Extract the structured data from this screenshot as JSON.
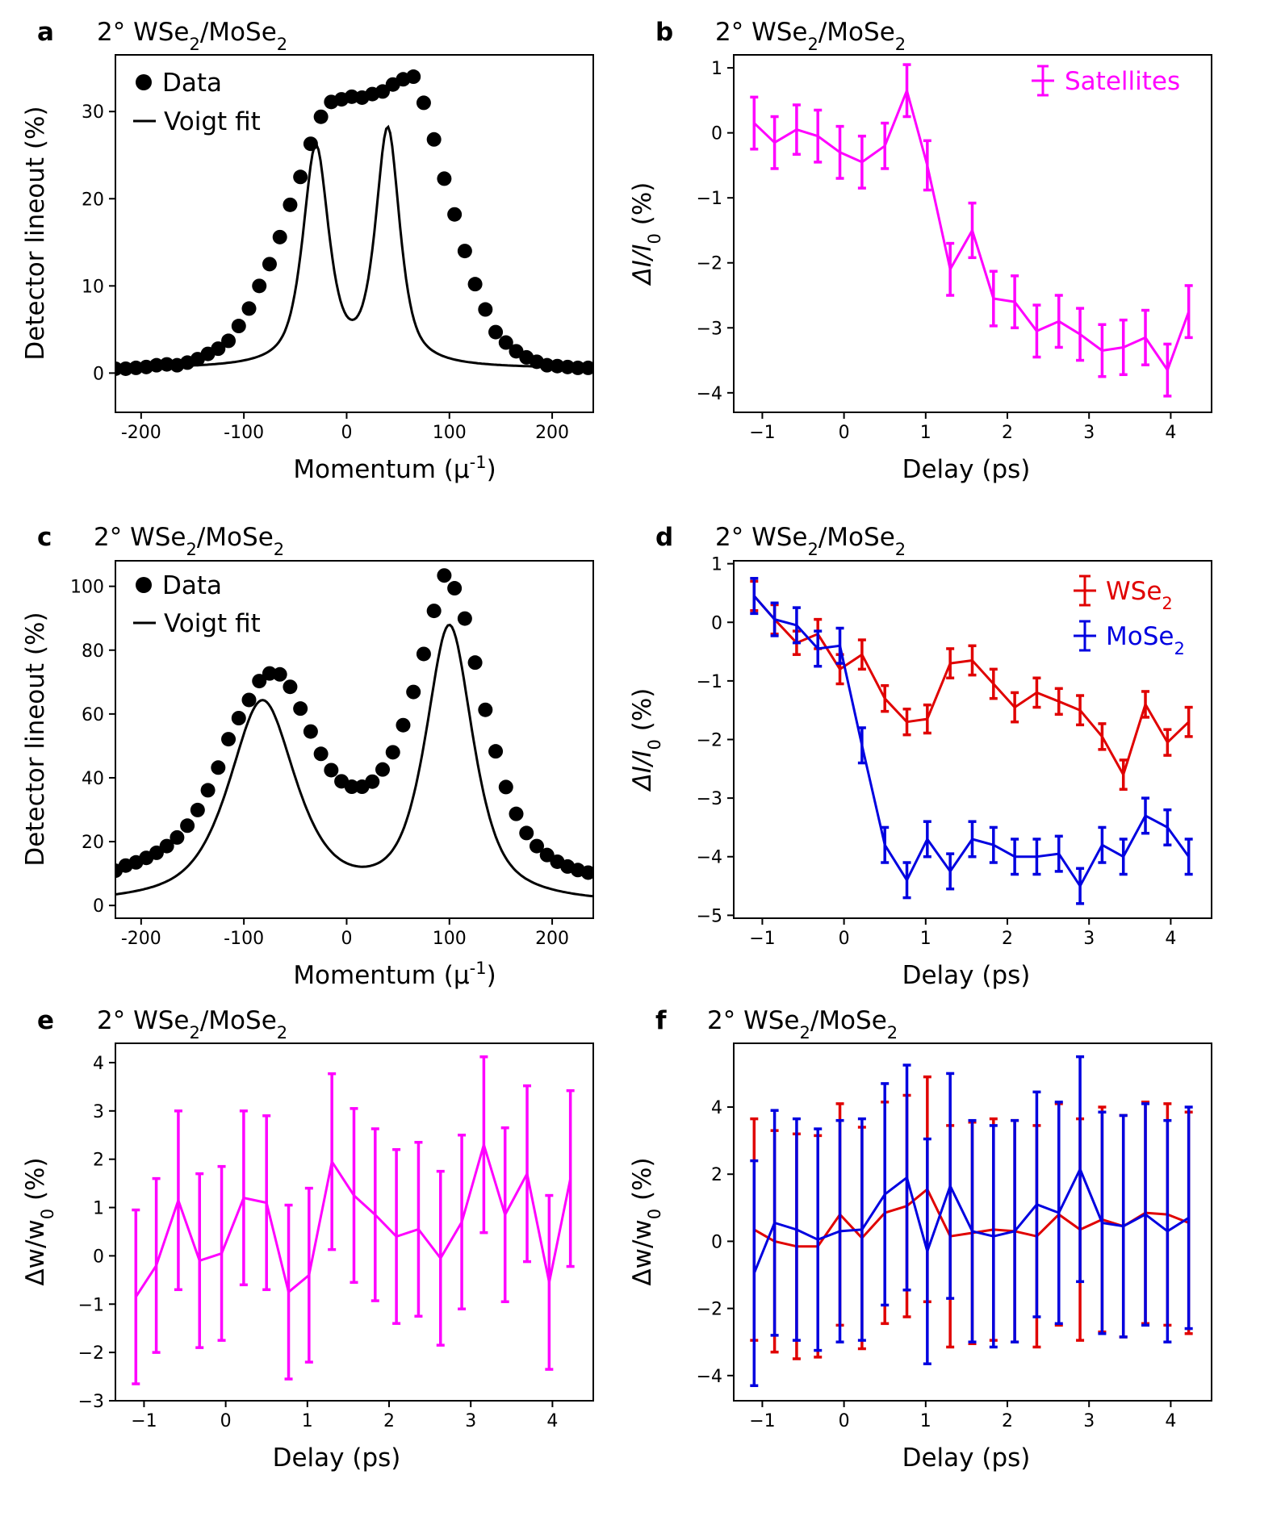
{
  "figure": {
    "panels": [
      {
        "letter": "a",
        "title_main": "2° WSe",
        "title_sub1": "2",
        "title_mid": "/MoSe",
        "title_sub2": "2"
      },
      {
        "letter": "b",
        "title_main": "2° WSe",
        "title_sub1": "2",
        "title_mid": "/MoSe",
        "title_sub2": "2"
      },
      {
        "letter": "c",
        "title_main": "2° WSe",
        "title_sub1": "2",
        "title_mid": "/MoSe",
        "title_sub2": "2"
      },
      {
        "letter": "d",
        "title_main": "2° WSe",
        "title_sub1": "2",
        "title_mid": "/MoSe",
        "title_sub2": "2"
      },
      {
        "letter": "e",
        "title_main": "2° WSe",
        "title_sub1": "2",
        "title_mid": "/MoSe",
        "title_sub2": "2"
      },
      {
        "letter": "f",
        "title_main": "2° WSe",
        "title_sub1": "2",
        "title_mid": "/MoSe",
        "title_sub2": "2"
      }
    ],
    "labels": {
      "detector": "Detector lineout (%)",
      "momentum_main": "Momentum (μ",
      "momentum_sup": "-1",
      "momentum_close": ")",
      "delay": "Delay (ps)",
      "dI_main": "ΔI/I",
      "dI_sub": "0",
      "dI_rest": " (%)",
      "dw_main": "Δw/w",
      "dw_sub": "0",
      "dw_rest": " (%)"
    },
    "legends": {
      "data": "Data",
      "voigt": "Voigt fit",
      "satellites": "Satellites",
      "wse2_main": "WSe",
      "wse2_sub": "2",
      "mose2_main": "MoSe",
      "mose2_sub": "2"
    }
  },
  "chart_data": [
    {
      "id": "a",
      "type": "scatter",
      "title": "2° WSe2/MoSe2",
      "xlabel": "Momentum (μ-1)",
      "ylabel": "Detector lineout (%)",
      "xlim": [
        -225,
        240
      ],
      "ylim": [
        -4.5,
        36.5
      ],
      "xticks": [
        -200,
        -100,
        0,
        100,
        200
      ],
      "yticks": [
        0,
        10,
        20,
        30
      ],
      "xtick_labels": [
        "-200",
        "-100",
        "0",
        "100",
        "200"
      ],
      "ytick_labels": [
        "0",
        "10",
        "20",
        "30"
      ],
      "fit_model": "voigt-double",
      "fit_params": {
        "c": 0.5,
        "peaks": [
          [
            -30,
            25,
            30
          ],
          [
            40,
            27,
            28
          ]
        ]
      },
      "marker_color": "#000000",
      "x": [
        -225,
        -215,
        -205,
        -195,
        -185,
        -175,
        -165,
        -155,
        -145,
        -135,
        -125,
        -115,
        -105,
        -95,
        -85,
        -75,
        -65,
        -55,
        -45,
        -35,
        -25,
        -15,
        -5,
        5,
        15,
        25,
        35,
        45,
        55,
        65,
        75,
        85,
        95,
        105,
        115,
        125,
        135,
        145,
        155,
        165,
        175,
        185,
        195,
        205,
        215,
        225,
        235
      ],
      "y": [
        0.5,
        0.5,
        0.6,
        0.7,
        0.9,
        1.0,
        0.9,
        1.2,
        1.6,
        2.2,
        2.8,
        3.7,
        5.4,
        7.4,
        10.0,
        12.5,
        15.6,
        19.3,
        22.5,
        26.3,
        29.4,
        31.1,
        31.4,
        31.7,
        31.6,
        32.0,
        32.3,
        33.1,
        33.7,
        34.0,
        31.0,
        26.8,
        22.3,
        18.2,
        14.0,
        10.2,
        7.3,
        4.7,
        3.5,
        2.5,
        1.8,
        1.3,
        0.9,
        0.8,
        0.7,
        0.6,
        0.6
      ]
    },
    {
      "id": "b",
      "type": "line",
      "title": "2° WSe2/MoSe2",
      "xlabel": "Delay (ps)",
      "ylabel": "ΔI/I0 (%)",
      "xlim": [
        -1.35,
        4.5
      ],
      "ylim": [
        -4.3,
        1.2
      ],
      "xticks": [
        -1,
        0,
        1,
        2,
        3,
        4
      ],
      "yticks": [
        1,
        0,
        -1,
        -2,
        -3,
        -4
      ],
      "xtick_labels": [
        "−1",
        "0",
        "1",
        "2",
        "3",
        "4"
      ],
      "ytick_labels": [
        "1",
        "0",
        "−1",
        "−2",
        "−3",
        "−4"
      ],
      "series": [
        {
          "name": "Satellites",
          "color": "#ff00ff",
          "x": [
            -1.1,
            -0.85,
            -0.58,
            -0.32,
            -0.05,
            0.22,
            0.5,
            0.77,
            1.02,
            1.3,
            1.57,
            1.83,
            2.09,
            2.36,
            2.63,
            2.89,
            3.16,
            3.42,
            3.69,
            3.96,
            4.22
          ],
          "y": [
            0.15,
            -0.15,
            0.05,
            -0.05,
            -0.3,
            -0.45,
            -0.2,
            0.65,
            -0.5,
            -2.1,
            -1.5,
            -2.55,
            -2.6,
            -3.05,
            -2.9,
            -3.1,
            -3.35,
            -3.3,
            -3.15,
            -3.65,
            -2.75
          ],
          "err": [
            0.4,
            0.4,
            0.38,
            0.4,
            0.4,
            0.4,
            0.35,
            0.4,
            0.38,
            0.4,
            0.42,
            0.42,
            0.4,
            0.4,
            0.4,
            0.4,
            0.4,
            0.42,
            0.42,
            0.4,
            0.4
          ]
        }
      ]
    },
    {
      "id": "c",
      "type": "scatter",
      "title": "2° WSe2/MoSe2",
      "xlabel": "Momentum (μ-1)",
      "ylabel": "Detector lineout (%)",
      "xlim": [
        -225,
        240
      ],
      "ylim": [
        -4,
        108
      ],
      "xticks": [
        -200,
        -100,
        0,
        100,
        200
      ],
      "yticks": [
        0,
        20,
        40,
        60,
        80,
        100
      ],
      "xtick_labels": [
        "-200",
        "-100",
        "0",
        "100",
        "200"
      ],
      "ytick_labels": [
        "0",
        "20",
        "40",
        "60",
        "80",
        "100"
      ],
      "fit_model": "voigt-double",
      "fit_params": {
        "c": 0,
        "peaks": [
          [
            -82,
            63,
            78
          ],
          [
            100,
            86,
            55
          ]
        ]
      },
      "marker_color": "#000000",
      "x": [
        -225,
        -215,
        -205,
        -195,
        -185,
        -175,
        -165,
        -155,
        -145,
        -135,
        -125,
        -115,
        -105,
        -95,
        -85,
        -75,
        -65,
        -55,
        -45,
        -35,
        -25,
        -15,
        -5,
        5,
        15,
        25,
        35,
        45,
        55,
        65,
        75,
        85,
        95,
        105,
        115,
        125,
        135,
        145,
        155,
        165,
        175,
        185,
        195,
        205,
        215,
        225,
        235
      ],
      "y": [
        10.9,
        12.5,
        13.5,
        14.9,
        16.5,
        18.6,
        21.3,
        25.0,
        29.9,
        36.1,
        43.2,
        52.1,
        58.7,
        64.4,
        70.3,
        72.7,
        72.4,
        68.5,
        61.7,
        54.5,
        47.5,
        42.4,
        38.9,
        37.2,
        37.2,
        38.8,
        42.6,
        48.0,
        56.5,
        66.9,
        78.8,
        92.3,
        103.4,
        99.4,
        89.9,
        76.1,
        61.3,
        48.3,
        37.1,
        28.7,
        22.7,
        18.6,
        15.8,
        13.7,
        12.2,
        11.1,
        10.3
      ]
    },
    {
      "id": "d",
      "type": "line",
      "title": "2° WSe2/MoSe2",
      "xlabel": "Delay (ps)",
      "ylabel": "ΔI/I0 (%)",
      "xlim": [
        -1.35,
        4.5
      ],
      "ylim": [
        -5.05,
        1.05
      ],
      "xticks": [
        -1,
        0,
        1,
        2,
        3,
        4
      ],
      "yticks": [
        1,
        0,
        -1,
        -2,
        -3,
        -4,
        -5
      ],
      "xtick_labels": [
        "−1",
        "0",
        "1",
        "2",
        "3",
        "4"
      ],
      "ytick_labels": [
        "1",
        "0",
        "−1",
        "−2",
        "−3",
        "−4",
        "−5"
      ],
      "series": [
        {
          "name": "WSe2",
          "color": "#e00000",
          "x": [
            -1.1,
            -0.85,
            -0.58,
            -0.32,
            -0.05,
            0.22,
            0.5,
            0.77,
            1.02,
            1.3,
            1.57,
            1.83,
            2.09,
            2.36,
            2.63,
            2.89,
            3.16,
            3.42,
            3.69,
            3.96,
            4.22
          ],
          "y": [
            0.45,
            0.05,
            -0.35,
            -0.2,
            -0.8,
            -0.55,
            -1.3,
            -1.7,
            -1.65,
            -0.7,
            -0.65,
            -1.05,
            -1.45,
            -1.2,
            -1.35,
            -1.5,
            -1.95,
            -2.6,
            -1.4,
            -2.05,
            -1.7
          ],
          "err": [
            0.25,
            0.25,
            0.2,
            0.25,
            0.25,
            0.25,
            0.22,
            0.22,
            0.24,
            0.25,
            0.25,
            0.25,
            0.25,
            0.25,
            0.22,
            0.25,
            0.22,
            0.25,
            0.22,
            0.22,
            0.25
          ]
        },
        {
          "name": "MoSe2",
          "color": "#0000e0",
          "x": [
            -1.1,
            -0.85,
            -0.58,
            -0.32,
            -0.05,
            0.22,
            0.5,
            0.77,
            1.02,
            1.3,
            1.57,
            1.83,
            2.09,
            2.36,
            2.63,
            2.89,
            3.16,
            3.42,
            3.69,
            3.96,
            4.22
          ],
          "y": [
            0.45,
            0.05,
            -0.05,
            -0.45,
            -0.4,
            -2.1,
            -3.8,
            -4.4,
            -3.7,
            -4.25,
            -3.7,
            -3.8,
            -4.0,
            -4.0,
            -3.95,
            -4.5,
            -3.8,
            -4.0,
            -3.3,
            -3.5,
            -4.0
          ],
          "err": [
            0.3,
            0.28,
            0.3,
            0.3,
            0.3,
            0.3,
            0.3,
            0.3,
            0.3,
            0.3,
            0.3,
            0.3,
            0.3,
            0.3,
            0.3,
            0.3,
            0.3,
            0.3,
            0.3,
            0.3,
            0.3
          ]
        }
      ],
      "legend": "top-right"
    },
    {
      "id": "e",
      "type": "line",
      "title": "2° WSe2/MoSe2",
      "xlabel": "Delay (ps)",
      "ylabel": "Δw/w0 (%)",
      "xlim": [
        -1.35,
        4.5
      ],
      "ylim": [
        -3.0,
        4.4
      ],
      "xticks": [
        -1,
        0,
        1,
        2,
        3,
        4
      ],
      "yticks": [
        4,
        3,
        2,
        1,
        0,
        -1,
        -2,
        -3
      ],
      "xtick_labels": [
        "−1",
        "0",
        "1",
        "2",
        "3",
        "4"
      ],
      "ytick_labels": [
        "4",
        "3",
        "2",
        "1",
        "0",
        "−1",
        "−2",
        "−3"
      ],
      "series": [
        {
          "name": "Satellites",
          "color": "#ff00ff",
          "x": [
            -1.1,
            -0.85,
            -0.58,
            -0.32,
            -0.05,
            0.22,
            0.5,
            0.77,
            1.02,
            1.3,
            1.57,
            1.83,
            2.09,
            2.36,
            2.63,
            2.89,
            3.16,
            3.42,
            3.69,
            3.96,
            4.22
          ],
          "y": [
            -0.85,
            -0.2,
            1.15,
            -0.1,
            0.05,
            1.2,
            1.1,
            -0.75,
            -0.4,
            1.95,
            1.25,
            0.85,
            0.4,
            0.55,
            -0.05,
            0.7,
            2.3,
            0.85,
            1.7,
            -0.55,
            1.6
          ],
          "err": [
            1.8,
            1.8,
            1.85,
            1.8,
            1.8,
            1.8,
            1.8,
            1.8,
            1.8,
            1.82,
            1.8,
            1.78,
            1.8,
            1.8,
            1.8,
            1.8,
            1.82,
            1.8,
            1.82,
            1.8,
            1.82
          ]
        }
      ]
    },
    {
      "id": "f",
      "type": "line",
      "title": "2° WSe2/MoSe2",
      "xlabel": "Delay (ps)",
      "ylabel": "Δw/w0 (%)",
      "xlim": [
        -1.35,
        4.5
      ],
      "ylim": [
        -4.75,
        5.9
      ],
      "xticks": [
        -1,
        0,
        1,
        2,
        3,
        4
      ],
      "yticks": [
        4,
        2,
        0,
        -2,
        -4
      ],
      "xtick_labels": [
        "−1",
        "0",
        "1",
        "2",
        "3",
        "4"
      ],
      "ytick_labels": [
        "4",
        "2",
        "0",
        "−2",
        "−4"
      ],
      "series": [
        {
          "name": "WSe2",
          "color": "#e00000",
          "x": [
            -1.1,
            -0.85,
            -0.58,
            -0.32,
            -0.05,
            0.22,
            0.5,
            0.77,
            1.02,
            1.3,
            1.57,
            1.83,
            2.09,
            2.36,
            2.63,
            2.89,
            3.16,
            3.42,
            3.69,
            3.96,
            4.22
          ],
          "y": [
            0.35,
            0.0,
            -0.15,
            -0.15,
            0.8,
            0.1,
            0.85,
            1.05,
            1.55,
            0.15,
            0.25,
            0.35,
            0.3,
            0.15,
            0.8,
            0.35,
            0.65,
            0.45,
            0.85,
            0.8,
            0.55
          ],
          "err": [
            3.3,
            3.3,
            3.35,
            3.3,
            3.3,
            3.3,
            3.3,
            3.3,
            3.35,
            3.3,
            3.3,
            3.3,
            3.3,
            3.3,
            3.3,
            3.3,
            3.35,
            3.3,
            3.3,
            3.3,
            3.3
          ]
        },
        {
          "name": "MoSe2",
          "color": "#0000e0",
          "x": [
            -1.1,
            -0.85,
            -0.58,
            -0.32,
            -0.05,
            0.22,
            0.5,
            0.77,
            1.02,
            1.3,
            1.57,
            1.83,
            2.09,
            2.36,
            2.63,
            2.89,
            3.16,
            3.42,
            3.69,
            3.96,
            4.22
          ],
          "y": [
            -0.95,
            0.55,
            0.35,
            0.05,
            0.3,
            0.35,
            1.4,
            1.9,
            -0.3,
            1.65,
            0.3,
            0.15,
            0.3,
            1.1,
            0.85,
            2.15,
            0.55,
            0.45,
            0.8,
            0.3,
            0.7
          ],
          "err": [
            3.35,
            3.35,
            3.3,
            3.3,
            3.3,
            3.3,
            3.3,
            3.35,
            3.35,
            3.35,
            3.3,
            3.3,
            3.3,
            3.35,
            3.3,
            3.35,
            3.3,
            3.3,
            3.3,
            3.3,
            3.3
          ]
        }
      ]
    }
  ]
}
